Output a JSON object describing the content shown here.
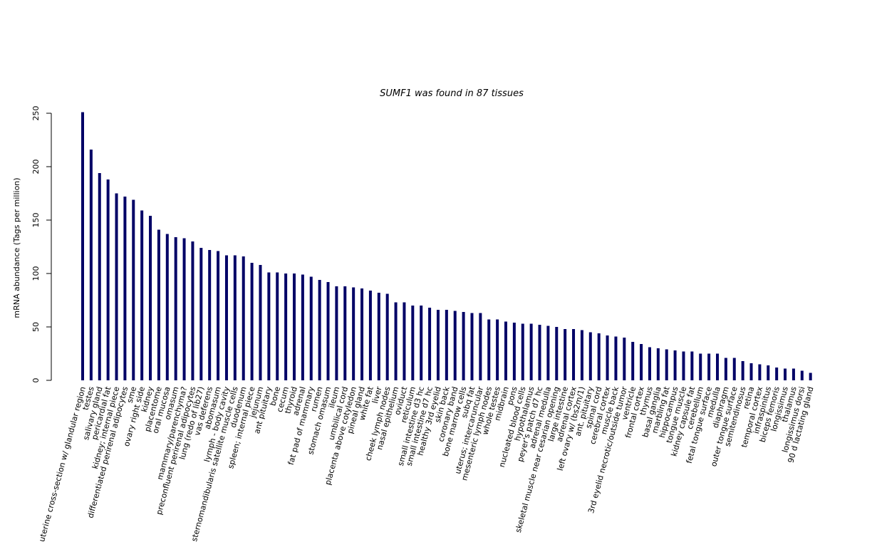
{
  "chart_data": {
    "type": "bar",
    "title": "SUMF1  was found in  87  tissues",
    "xlabel": "",
    "ylabel": "mRNA abundance (Tags per million)",
    "ylim": [
      0,
      250
    ],
    "yticks": [
      0,
      50,
      100,
      150,
      200,
      250
    ],
    "bar_color": "#000066",
    "grid": false,
    "categories": [
      "uterine cross-section w/ glandular region",
      "testes",
      "salivary gland",
      "pericardial fat",
      "kidney; internal piece",
      "differentiated perirenal adipocytes",
      "sme",
      "ovary right side",
      "kidney",
      "placentome",
      "oral mucosa",
      "omasum",
      "mammary/parenchyma?",
      "preconfluent perirenal adipocytes",
      "lung (redo of lib27)",
      "vas deferens",
      "abomasum",
      "lymph - body cavity",
      "sternomandibularis satellite muscle cells",
      "duodenum",
      "spleen; internal piece",
      "jejunum",
      "ant pituitary",
      "bone",
      "cecum",
      "thyroid",
      "adrenal",
      "fat pad of mammary",
      "rumen",
      "stomach omasum",
      "ileum",
      "umbilical cord",
      "placenta above cotyledon",
      "pineal gland",
      "white fat",
      "liver",
      "cheek lymph nodes",
      "nasal epithelium",
      "oviduct",
      "reticulum",
      "small intestine d3 hc",
      "small intestine d7 hc",
      "healthy 3rd eyelid",
      "skin back",
      "coronary band",
      "bone marrow cells",
      "subq fat",
      "uterus; intercaruncular",
      "mesenteric lymph nodes",
      "whole testes",
      "midbrain",
      "pons",
      "nucleated blood cells",
      "hypothalamus",
      "peyer's patch d7 hc",
      "adrenal medulla",
      "skeletal muscle near cesarian opening",
      "large intestine",
      "adrenal cortex",
      "left ovary w/ (bs2m/1)",
      "ant. pituitary",
      "spinal cord",
      "cerebral cortex",
      "muscle back",
      "3rd eyelid necrotic/outside tumor",
      "ventricle",
      "frontal cortex",
      "thymus",
      "basal ganglia",
      "marbling fat",
      "hippocampus",
      "tongue muscle",
      "kidney capsule fat",
      "cerebellum",
      "fetal tongue surface",
      "medulla",
      "diaphragm",
      "outer tongue surface",
      "semitendinosus",
      "retina",
      "temporal cortex",
      "infraspinitus",
      "biceps femoris",
      "longissimus",
      "thalamus",
      "longissimus dorsi",
      "90 d lactating gland"
    ],
    "values": [
      251,
      216,
      194,
      188,
      175,
      172,
      169,
      159,
      154,
      141,
      137,
      134,
      133,
      130,
      124,
      122,
      121,
      117,
      117,
      116,
      110,
      108,
      101,
      101,
      100,
      100,
      99,
      97,
      94,
      92,
      88,
      88,
      87,
      86,
      84,
      82,
      81,
      73,
      73,
      70,
      70,
      68,
      66,
      66,
      65,
      64,
      63,
      63,
      57,
      57,
      55,
      54,
      53,
      53,
      52,
      51,
      50,
      48,
      48,
      47,
      45,
      44,
      42,
      41,
      40,
      36,
      34,
      31,
      30,
      29,
      28,
      27,
      27,
      25,
      25,
      25,
      21,
      21,
      18,
      16,
      15,
      14,
      12,
      11,
      11,
      9,
      7
    ]
  }
}
